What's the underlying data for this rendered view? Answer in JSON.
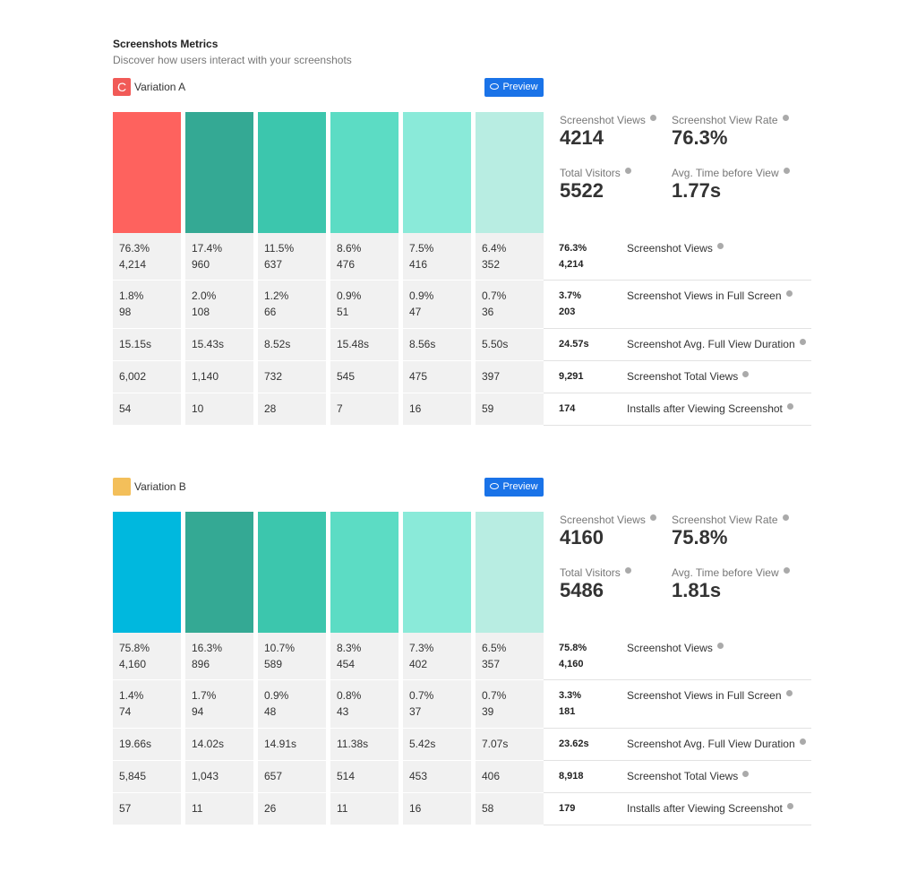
{
  "header": {
    "title": "Screenshots Metrics",
    "subtitle": "Discover how users interact with your screenshots"
  },
  "variations": [
    {
      "badge": "C",
      "badge_color": "#f15a57",
      "name": "Variation A",
      "preview": "Preview",
      "column_colors": [
        "#fe625e",
        "#34a994",
        "#3cc6ad",
        "#5cdcc4",
        "#8aead9",
        "#b8ede2"
      ],
      "summary": [
        {
          "label": "Screenshot Views",
          "value": "4214"
        },
        {
          "label": "Screenshot View Rate",
          "value": "76.3%"
        },
        {
          "label": "Total Visitors",
          "value": "5522"
        },
        {
          "label": "Avg. Time before View",
          "value": "1.77s"
        }
      ],
      "rows": [
        {
          "cells": [
            [
              "76.3%",
              "4,214"
            ],
            [
              "17.4%",
              "960"
            ],
            [
              "11.5%",
              "637"
            ],
            [
              "8.6%",
              "476"
            ],
            [
              "7.5%",
              "416"
            ],
            [
              "6.4%",
              "352"
            ]
          ],
          "total": [
            "76.3%",
            "4,214"
          ],
          "label": "Screenshot Views"
        },
        {
          "cells": [
            [
              "1.8%",
              "98"
            ],
            [
              "2.0%",
              "108"
            ],
            [
              "1.2%",
              "66"
            ],
            [
              "0.9%",
              "51"
            ],
            [
              "0.9%",
              "47"
            ],
            [
              "0.7%",
              "36"
            ]
          ],
          "total": [
            "3.7%",
            "203"
          ],
          "label": "Screenshot Views in Full Screen"
        },
        {
          "cells": [
            [
              "15.15s"
            ],
            [
              "15.43s"
            ],
            [
              "8.52s"
            ],
            [
              "15.48s"
            ],
            [
              "8.56s"
            ],
            [
              "5.50s"
            ]
          ],
          "total": [
            "24.57s"
          ],
          "label": "Screenshot Avg. Full View Duration"
        },
        {
          "cells": [
            [
              "6,002"
            ],
            [
              "1,140"
            ],
            [
              "732"
            ],
            [
              "545"
            ],
            [
              "475"
            ],
            [
              "397"
            ]
          ],
          "total": [
            "9,291"
          ],
          "label": "Screenshot Total Views"
        },
        {
          "cells": [
            [
              "54"
            ],
            [
              "10"
            ],
            [
              "28"
            ],
            [
              "7"
            ],
            [
              "16"
            ],
            [
              "59"
            ]
          ],
          "total": [
            "174"
          ],
          "label": "Installs after Viewing Screenshot"
        }
      ]
    },
    {
      "badge_color": "#f3bf5a",
      "name": "Variation B",
      "preview": "Preview",
      "column_colors": [
        "#00b8de",
        "#34a994",
        "#3cc6ad",
        "#5cdcc4",
        "#8aead9",
        "#b8ede2"
      ],
      "summary": [
        {
          "label": "Screenshot Views",
          "value": "4160"
        },
        {
          "label": "Screenshot View Rate",
          "value": "75.8%"
        },
        {
          "label": "Total Visitors",
          "value": "5486"
        },
        {
          "label": "Avg. Time before View",
          "value": "1.81s"
        }
      ],
      "rows": [
        {
          "cells": [
            [
              "75.8%",
              "4,160"
            ],
            [
              "16.3%",
              "896"
            ],
            [
              "10.7%",
              "589"
            ],
            [
              "8.3%",
              "454"
            ],
            [
              "7.3%",
              "402"
            ],
            [
              "6.5%",
              "357"
            ]
          ],
          "total": [
            "75.8%",
            "4,160"
          ],
          "label": "Screenshot Views"
        },
        {
          "cells": [
            [
              "1.4%",
              "74"
            ],
            [
              "1.7%",
              "94"
            ],
            [
              "0.9%",
              "48"
            ],
            [
              "0.8%",
              "43"
            ],
            [
              "0.7%",
              "37"
            ],
            [
              "0.7%",
              "39"
            ]
          ],
          "total": [
            "3.3%",
            "181"
          ],
          "label": "Screenshot Views in Full Screen"
        },
        {
          "cells": [
            [
              "19.66s"
            ],
            [
              "14.02s"
            ],
            [
              "14.91s"
            ],
            [
              "11.38s"
            ],
            [
              "5.42s"
            ],
            [
              "7.07s"
            ]
          ],
          "total": [
            "23.62s"
          ],
          "label": "Screenshot Avg. Full View Duration"
        },
        {
          "cells": [
            [
              "5,845"
            ],
            [
              "1,043"
            ],
            [
              "657"
            ],
            [
              "514"
            ],
            [
              "453"
            ],
            [
              "406"
            ]
          ],
          "total": [
            "8,918"
          ],
          "label": "Screenshot Total Views"
        },
        {
          "cells": [
            [
              "57"
            ],
            [
              "11"
            ],
            [
              "26"
            ],
            [
              "11"
            ],
            [
              "16"
            ],
            [
              "58"
            ]
          ],
          "total": [
            "179"
          ],
          "label": "Installs after Viewing Screenshot"
        }
      ]
    }
  ]
}
